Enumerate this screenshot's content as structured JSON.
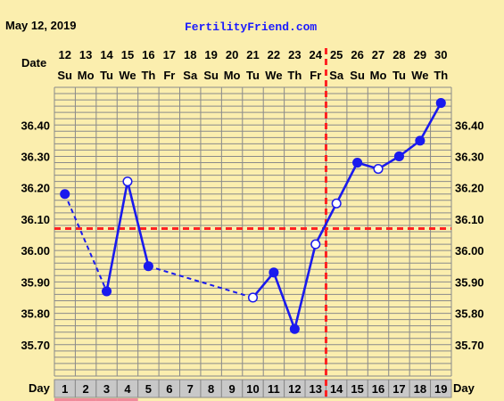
{
  "header": {
    "date": "May 12, 2019",
    "site": "FertilityFriend.com",
    "date_row_label": "Date",
    "day_row_label": "Day"
  },
  "colors": {
    "background": "#fbeeae",
    "grid": "#8a8a8a",
    "line": "#1a1aee",
    "coverline": "#ff2222",
    "ovulation_line": "#ff2222",
    "day_cell": "#c8c8c8",
    "period_marker": "#f08a9a"
  },
  "chart_data": {
    "type": "line",
    "title": "",
    "xlabel": "Day",
    "ylabel": "",
    "ylim": [
      35.6,
      36.52
    ],
    "y_ticks": [
      "35.70",
      "35.80",
      "35.90",
      "36.00",
      "36.10",
      "36.20",
      "36.30",
      "36.40"
    ],
    "y_tick_values": [
      35.7,
      35.8,
      35.9,
      36.0,
      36.1,
      36.2,
      36.3,
      36.4
    ],
    "cycle_days": [
      "1",
      "2",
      "3",
      "4",
      "5",
      "6",
      "7",
      "8",
      "9",
      "10",
      "11",
      "12",
      "13",
      "14",
      "15",
      "16",
      "17",
      "18",
      "19"
    ],
    "dates": [
      "12",
      "13",
      "14",
      "15",
      "16",
      "17",
      "18",
      "19",
      "20",
      "21",
      "22",
      "23",
      "24",
      "25",
      "26",
      "27",
      "28",
      "29",
      "30"
    ],
    "weekdays": [
      "Su",
      "Mo",
      "Tu",
      "We",
      "Th",
      "Fr",
      "Sa",
      "Su",
      "Mo",
      "Tu",
      "We",
      "Th",
      "Fr",
      "Sa",
      "Su",
      "Mo",
      "Tu",
      "We",
      "Th"
    ],
    "grid": true,
    "series": [
      {
        "x": [
          1,
          3,
          4,
          5,
          10,
          11,
          12,
          13,
          14,
          15,
          16,
          17,
          18,
          19
        ],
        "values": [
          36.18,
          35.87,
          36.22,
          35.95,
          35.85,
          35.93,
          35.75,
          36.02,
          36.15,
          36.28,
          36.26,
          36.3,
          36.35,
          36.47
        ],
        "open_marker": [
          false,
          false,
          true,
          false,
          true,
          false,
          false,
          true,
          true,
          false,
          true,
          false,
          false,
          false
        ],
        "dashed_segment_into": [
          false,
          true,
          false,
          false,
          true,
          false,
          false,
          false,
          false,
          false,
          false,
          false,
          false,
          false
        ]
      }
    ],
    "coverline": 36.07,
    "ovulation_day": 13,
    "period_days": [
      1,
      2,
      3,
      4
    ]
  }
}
